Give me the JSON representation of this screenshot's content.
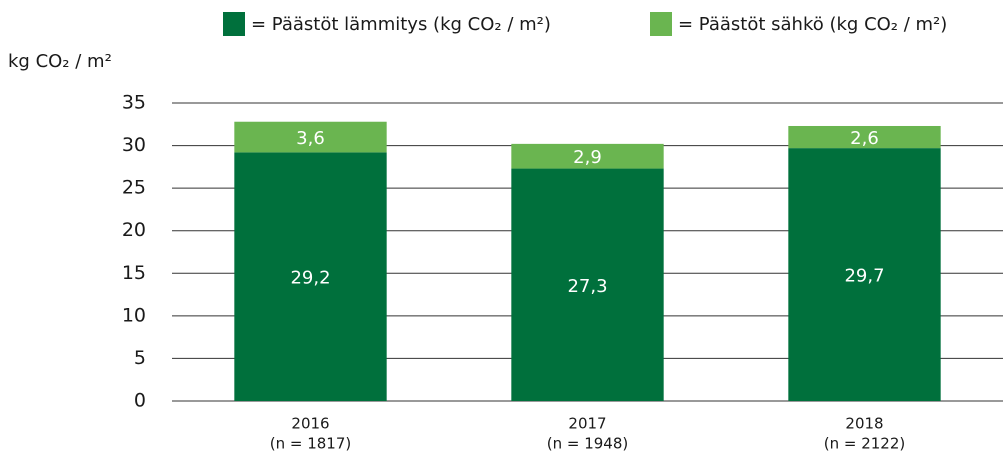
{
  "chart_data": {
    "type": "stacked_bar",
    "y_axis_label": "kg CO₂ / m²",
    "categories": [
      "2016",
      "2017",
      "2018"
    ],
    "sample_sizes": [
      "(n = 1817)",
      "(n = 1948)",
      "(n = 2122)"
    ],
    "series": [
      {
        "name": "= Päästöt lämmitys (kg CO₂ / m²)",
        "color": "#00703c",
        "values": [
          29.2,
          27.3,
          29.7
        ],
        "value_labels": [
          "29,2",
          "27,3",
          "29,7"
        ]
      },
      {
        "name": "= Päästöt sähkö (kg CO₂ / m²)",
        "color": "#6ab550",
        "values": [
          3.6,
          2.9,
          2.6
        ],
        "value_labels": [
          "3,6",
          "2,9",
          "2,6"
        ]
      }
    ],
    "ylim": [
      0,
      35
    ],
    "yticks": [
      0,
      5,
      10,
      15,
      20,
      25,
      30,
      35
    ],
    "grid": true
  }
}
